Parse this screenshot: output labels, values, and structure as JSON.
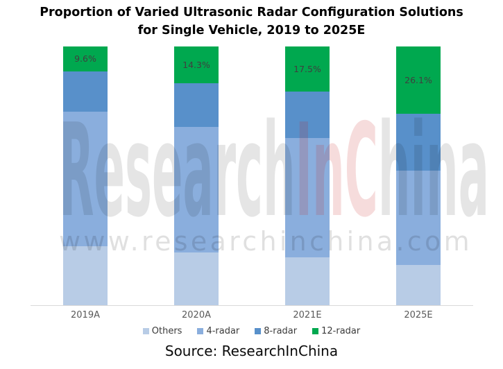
{
  "title": {
    "line1": "Proportion of Varied Ultrasonic Radar Configuration Solutions",
    "line2": "for Single Vehicle, 2019 to 2025E"
  },
  "watermark": {
    "parts": [
      {
        "text": "Research",
        "red": false
      },
      {
        "text": "In",
        "red": true
      },
      {
        "text": "C",
        "red": true
      },
      {
        "text": "hina",
        "red": false
      }
    ],
    "url": "www.researchinchina.com",
    "gray_color": "rgba(0,0,0,0.10)",
    "red_color": "rgba(200,40,40,0.16)"
  },
  "chart_data": {
    "type": "bar",
    "stacked": true,
    "unit": "percent",
    "title": "Proportion of Varied Ultrasonic Radar Configuration Solutions for Single Vehicle, 2019 to 2025E",
    "categories": [
      "2019A",
      "2020A",
      "2021E",
      "2025E"
    ],
    "series": [
      {
        "name": "Others",
        "color": "#b8cce6",
        "values": [
          22.9,
          20.4,
          18.4,
          15.6
        ]
      },
      {
        "name": "4-radar",
        "color": "#8aaedd",
        "values": [
          51.9,
          48.6,
          46.1,
          36.5
        ]
      },
      {
        "name": "8-radar",
        "color": "#5890ca",
        "values": [
          15.6,
          16.7,
          18.0,
          21.8
        ]
      },
      {
        "name": "12-radar",
        "color": "#00a84f",
        "values": [
          9.6,
          14.3,
          17.5,
          26.1
        ]
      }
    ],
    "data_labels": {
      "series": "12-radar",
      "values": [
        "9.6%",
        "14.3%",
        "17.5%",
        "26.1%"
      ]
    },
    "ylim": [
      0,
      100
    ],
    "grid": false,
    "legend_position": "bottom",
    "axis_line_color": "#d9d9d9",
    "category_label_color": "#595959"
  },
  "source": {
    "text": "Source: ResearchInChina"
  }
}
